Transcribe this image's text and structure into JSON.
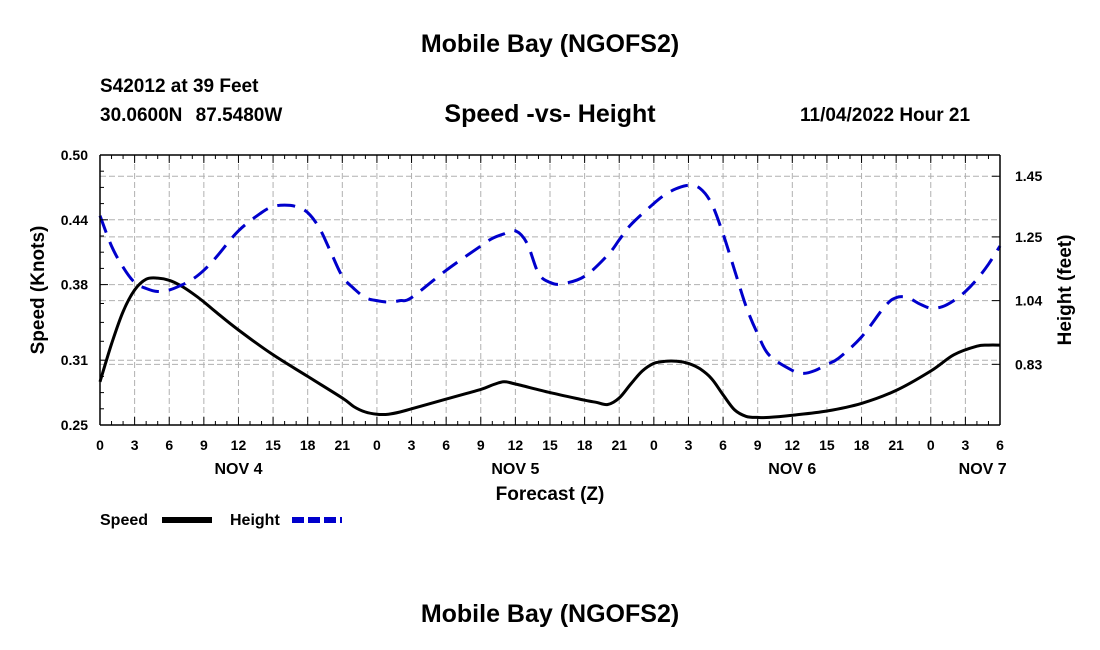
{
  "header": {
    "title": "Mobile Bay (NGOFS2)",
    "station": "S42012 at 39 Feet",
    "coords": "30.0600N  87.5480W",
    "subtitle": "Speed -vs- Height",
    "run_time": "11/04/2022 Hour 21"
  },
  "footer": {
    "title": "Mobile Bay (NGOFS2)"
  },
  "colors": {
    "speed": "#000000",
    "height": "#0000cc",
    "grid": "#b0b0b0"
  },
  "chart_data": {
    "type": "line",
    "title": "Speed -vs- Height",
    "xlabel": "Forecast (Z)",
    "ylabel": "Speed (Knots)",
    "y2label": "Height (feet)",
    "x_range": [
      0,
      78
    ],
    "x_ticks": [
      {
        "h": 0,
        "label": "0"
      },
      {
        "h": 3,
        "label": "3"
      },
      {
        "h": 6,
        "label": "6"
      },
      {
        "h": 9,
        "label": "9"
      },
      {
        "h": 12,
        "label": "12"
      },
      {
        "h": 15,
        "label": "15"
      },
      {
        "h": 18,
        "label": "18"
      },
      {
        "h": 21,
        "label": "21"
      },
      {
        "h": 24,
        "label": "0"
      },
      {
        "h": 27,
        "label": "3"
      },
      {
        "h": 30,
        "label": "6"
      },
      {
        "h": 33,
        "label": "9"
      },
      {
        "h": 36,
        "label": "12"
      },
      {
        "h": 39,
        "label": "15"
      },
      {
        "h": 42,
        "label": "18"
      },
      {
        "h": 45,
        "label": "21"
      },
      {
        "h": 48,
        "label": "0"
      },
      {
        "h": 51,
        "label": "3"
      },
      {
        "h": 54,
        "label": "6"
      },
      {
        "h": 57,
        "label": "9"
      },
      {
        "h": 60,
        "label": "12"
      },
      {
        "h": 63,
        "label": "15"
      },
      {
        "h": 66,
        "label": "18"
      },
      {
        "h": 69,
        "label": "21"
      },
      {
        "h": 72,
        "label": "0"
      },
      {
        "h": 75,
        "label": "3"
      },
      {
        "h": 78,
        "label": "6"
      }
    ],
    "date_labels": [
      {
        "h": 12,
        "label": "NOV 4"
      },
      {
        "h": 36,
        "label": "NOV 5"
      },
      {
        "h": 60,
        "label": "NOV 6"
      },
      {
        "h": 76.5,
        "label": "NOV 7"
      }
    ],
    "y_left": {
      "range": [
        0.25,
        0.5
      ],
      "ticks": [
        0.25,
        0.31,
        0.38,
        0.44,
        0.5
      ],
      "tick_labels": [
        "0.25",
        "0.31",
        "0.38",
        "0.44",
        "0.50"
      ]
    },
    "y_right": {
      "range": [
        0.63,
        1.52
      ],
      "ticks": [
        0.83,
        1.04,
        1.25,
        1.45
      ],
      "tick_labels": [
        "0.83",
        "1.04",
        "1.25",
        "1.45"
      ]
    },
    "series": [
      {
        "name": "Speed",
        "axis": "left",
        "style": "solid",
        "x": [
          0,
          1,
          2,
          3,
          4,
          5,
          6,
          7,
          8,
          9,
          10,
          12,
          15,
          18,
          21,
          22,
          23,
          24,
          25,
          26,
          27,
          30,
          33,
          34,
          35,
          36,
          39,
          42,
          43,
          44,
          45,
          46,
          47,
          48,
          49,
          50,
          51,
          52,
          53,
          54,
          55,
          56,
          57,
          58,
          60,
          63,
          66,
          69,
          72,
          74,
          76,
          77,
          78
        ],
        "values": [
          0.29,
          0.325,
          0.355,
          0.375,
          0.385,
          0.386,
          0.384,
          0.379,
          0.372,
          0.364,
          0.355,
          0.338,
          0.315,
          0.295,
          0.275,
          0.267,
          0.262,
          0.26,
          0.26,
          0.262,
          0.265,
          0.274,
          0.283,
          0.287,
          0.29,
          0.288,
          0.28,
          0.273,
          0.271,
          0.269,
          0.275,
          0.288,
          0.3,
          0.307,
          0.309,
          0.309,
          0.307,
          0.302,
          0.293,
          0.278,
          0.264,
          0.258,
          0.257,
          0.257,
          0.259,
          0.263,
          0.27,
          0.282,
          0.3,
          0.315,
          0.323,
          0.324,
          0.324
        ]
      },
      {
        "name": "Height",
        "axis": "right",
        "style": "dashed",
        "x": [
          0,
          1,
          2,
          3,
          4,
          5,
          6,
          7,
          8,
          9,
          10,
          12,
          14,
          15,
          16,
          17,
          18,
          19,
          20,
          21,
          22,
          23,
          24,
          25,
          26,
          27,
          30,
          33,
          34,
          35,
          36,
          37,
          38,
          39,
          40,
          42,
          44,
          45,
          46,
          48,
          49,
          50,
          51,
          52,
          53,
          54,
          55,
          56,
          57,
          58,
          60,
          61,
          62,
          63,
          64,
          66,
          68,
          69,
          70,
          71,
          72,
          73,
          74,
          75,
          76,
          77,
          78
        ],
        "values": [
          1.32,
          1.22,
          1.15,
          1.1,
          1.08,
          1.07,
          1.075,
          1.09,
          1.11,
          1.14,
          1.18,
          1.27,
          1.33,
          1.35,
          1.355,
          1.35,
          1.33,
          1.28,
          1.2,
          1.12,
          1.08,
          1.05,
          1.04,
          1.035,
          1.04,
          1.05,
          1.14,
          1.22,
          1.245,
          1.26,
          1.27,
          1.23,
          1.13,
          1.1,
          1.095,
          1.12,
          1.19,
          1.24,
          1.29,
          1.36,
          1.39,
          1.41,
          1.42,
          1.41,
          1.36,
          1.26,
          1.14,
          1.02,
          0.93,
          0.86,
          0.81,
          0.8,
          0.81,
          0.83,
          0.85,
          0.92,
          1.02,
          1.05,
          1.05,
          1.03,
          1.015,
          1.02,
          1.04,
          1.07,
          1.11,
          1.16,
          1.22
        ]
      }
    ],
    "legend": [
      {
        "label": "Speed",
        "style": "solid",
        "color": "#000000"
      },
      {
        "label": "Height",
        "style": "dashed",
        "color": "#0000cc"
      }
    ],
    "legend_position": "bottom-left",
    "grid": true
  }
}
